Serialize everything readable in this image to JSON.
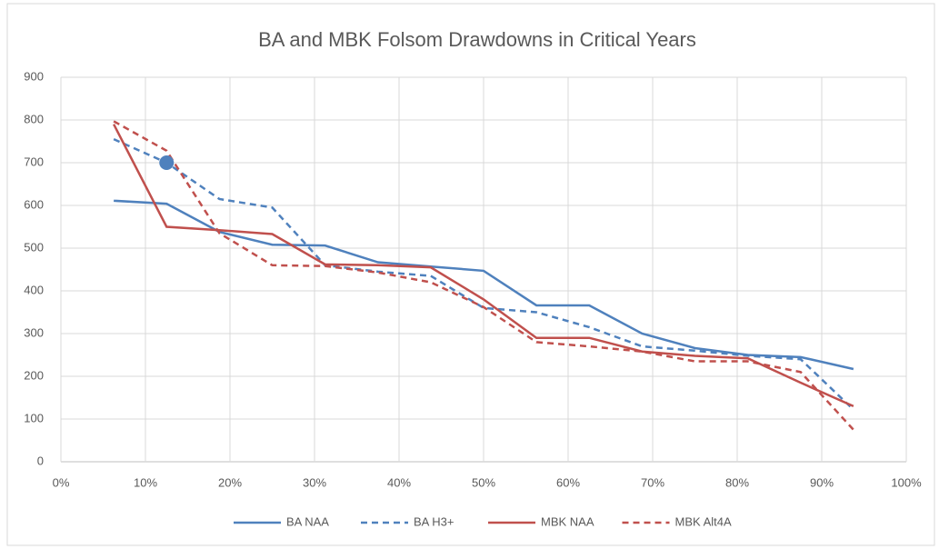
{
  "chart_data": {
    "type": "line",
    "title": "BA and MBK Folsom Drawdowns in Critical Years",
    "x": [
      6.25,
      12.5,
      18.75,
      25,
      31.25,
      37.5,
      43.75,
      50,
      56.25,
      62.5,
      68.75,
      75,
      81.25,
      87.5,
      93.75
    ],
    "series": [
      {
        "name": "BA NAA",
        "color": "#4f81bd",
        "dash": false,
        "values": [
          611,
          604,
          538,
          508,
          506,
          467,
          457,
          447,
          366,
          366,
          300,
          266,
          250,
          245,
          217
        ]
      },
      {
        "name": "BA H3+",
        "color": "#4f81bd",
        "dash": true,
        "values": [
          755,
          700,
          615,
          595,
          460,
          445,
          435,
          360,
          350,
          315,
          270,
          260,
          248,
          240,
          122
        ]
      },
      {
        "name": "MBK NAA",
        "color": "#c0504d",
        "dash": false,
        "values": [
          790,
          550,
          542,
          533,
          462,
          460,
          455,
          380,
          290,
          290,
          258,
          248,
          242,
          185,
          130
        ]
      },
      {
        "name": "MBK Alt4A",
        "color": "#c0504d",
        "dash": true,
        "values": [
          797,
          728,
          535,
          460,
          458,
          443,
          420,
          362,
          280,
          270,
          258,
          235,
          235,
          210,
          75
        ]
      }
    ],
    "highlight": {
      "series": 1,
      "index": 1
    },
    "xlim": [
      0,
      100
    ],
    "xticks": [
      {
        "value": 0,
        "label": "0%"
      },
      {
        "value": 10,
        "label": "10%"
      },
      {
        "value": 20,
        "label": "20%"
      },
      {
        "value": 30,
        "label": "30%"
      },
      {
        "value": 40,
        "label": "40%"
      },
      {
        "value": 50,
        "label": "50%"
      },
      {
        "value": 60,
        "label": "60%"
      },
      {
        "value": 70,
        "label": "70%"
      },
      {
        "value": 80,
        "label": "80%"
      },
      {
        "value": 90,
        "label": "90%"
      },
      {
        "value": 100,
        "label": "100%"
      }
    ],
    "ylim": [
      0,
      900
    ],
    "yticks": [
      0,
      100,
      200,
      300,
      400,
      500,
      600,
      700,
      800,
      900
    ],
    "grid": true,
    "legend": "bottom"
  }
}
